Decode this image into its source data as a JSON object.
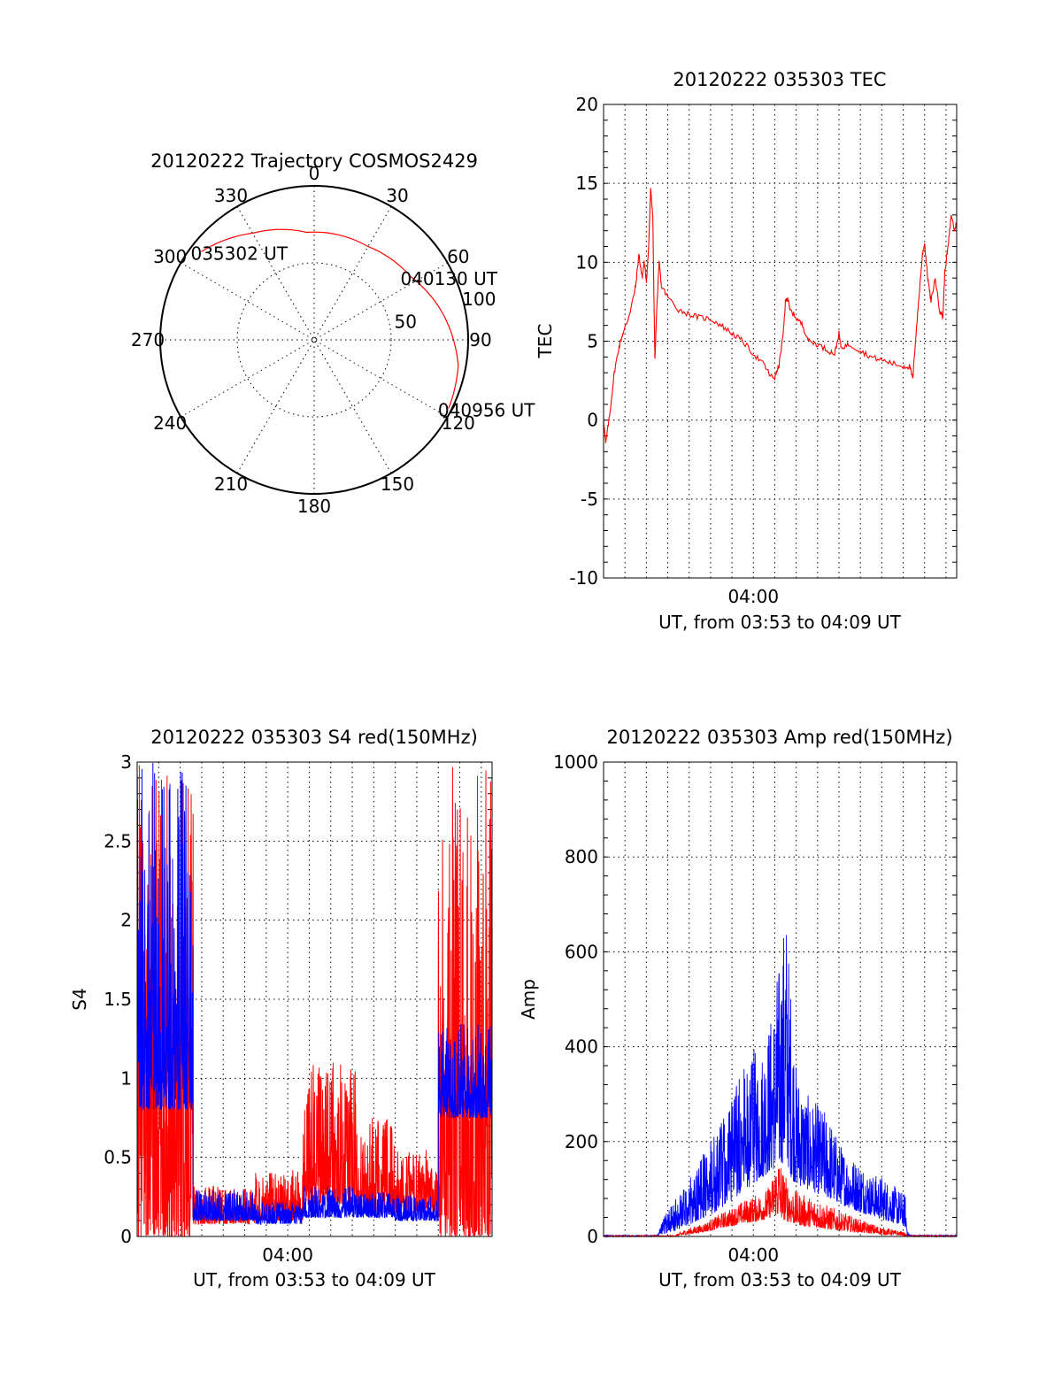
{
  "chart_data": [
    {
      "id": "trajectory",
      "type": "polar",
      "title": "20120222 Trajectory COSMOS2429",
      "azimuth_labels": [
        "0",
        "30",
        "60",
        "90",
        "120",
        "150",
        "180",
        "210",
        "240",
        "270",
        "300",
        "330"
      ],
      "radius_labels": [
        {
          "label": "50",
          "r": 50
        },
        {
          "label": "100",
          "r": 100
        }
      ],
      "r_max": 100,
      "track": [
        {
          "az": 308,
          "r": 93
        },
        {
          "az": 330,
          "r": 80
        },
        {
          "az": 356,
          "r": 70
        },
        {
          "az": 30,
          "r": 70
        },
        {
          "az": 57,
          "r": 75
        },
        {
          "az": 80,
          "r": 86
        },
        {
          "az": 100,
          "r": 95
        },
        {
          "az": 117,
          "r": 98
        }
      ],
      "annotations": [
        {
          "text": "035302 UT",
          "az": 308,
          "r": 93
        },
        {
          "text": "040130 UT",
          "az": 57,
          "r": 75
        },
        {
          "text": "040956 UT",
          "az": 117,
          "r": 98
        }
      ],
      "colors": {
        "track": "#ff0000"
      }
    },
    {
      "id": "tec",
      "type": "line",
      "title": "20120222 035303 TEC",
      "ylabel": "TEC",
      "xlabel": "UT, from 03:53 to 04:09 UT",
      "ylim": [
        -10,
        20
      ],
      "yticks": [
        -10,
        -5,
        0,
        5,
        10,
        15,
        20
      ],
      "xlim_min": [
        233,
        249.5
      ],
      "xtick_labels": [
        {
          "label": "04:00",
          "x": 240
        }
      ],
      "series": [
        {
          "color": "#ff0000",
          "points": [
            [
              233.0,
              0.0
            ],
            [
              233.1,
              -1.5
            ],
            [
              233.3,
              0.5
            ],
            [
              233.5,
              3.0
            ],
            [
              233.7,
              4.5
            ],
            [
              233.9,
              5.5
            ],
            [
              234.1,
              6.2
            ],
            [
              234.3,
              7.2
            ],
            [
              234.5,
              8.5
            ],
            [
              234.65,
              10.5
            ],
            [
              234.8,
              9.0
            ],
            [
              234.9,
              10.0
            ],
            [
              235.0,
              8.8
            ],
            [
              235.1,
              10.8
            ],
            [
              235.2,
              14.6
            ],
            [
              235.3,
              13.0
            ],
            [
              235.35,
              8.0
            ],
            [
              235.4,
              3.8
            ],
            [
              235.5,
              7.5
            ],
            [
              235.6,
              10.0
            ],
            [
              235.7,
              8.5
            ],
            [
              236.0,
              7.8
            ],
            [
              236.5,
              7.0
            ],
            [
              237.0,
              6.7
            ],
            [
              237.5,
              6.5
            ],
            [
              238.0,
              6.4
            ],
            [
              238.5,
              6.0
            ],
            [
              239.0,
              5.5
            ],
            [
              239.5,
              5.0
            ],
            [
              240.0,
              4.2
            ],
            [
              240.5,
              3.5
            ],
            [
              240.8,
              2.8
            ],
            [
              241.0,
              2.7
            ],
            [
              241.2,
              3.5
            ],
            [
              241.4,
              5.5
            ],
            [
              241.5,
              7.5
            ],
            [
              241.6,
              7.8
            ],
            [
              241.7,
              7.0
            ],
            [
              242.0,
              6.5
            ],
            [
              242.3,
              6.0
            ],
            [
              242.6,
              5.0
            ],
            [
              243.0,
              4.8
            ],
            [
              243.5,
              4.4
            ],
            [
              243.8,
              4.2
            ],
            [
              244.0,
              5.5
            ],
            [
              244.1,
              4.6
            ],
            [
              244.5,
              4.8
            ],
            [
              245.0,
              4.4
            ],
            [
              245.5,
              4.0
            ],
            [
              246.0,
              3.8
            ],
            [
              246.5,
              3.6
            ],
            [
              247.0,
              3.4
            ],
            [
              247.3,
              3.4
            ],
            [
              247.45,
              2.6
            ],
            [
              247.6,
              5.5
            ],
            [
              247.75,
              8.0
            ],
            [
              247.9,
              10.5
            ],
            [
              248.0,
              11.2
            ],
            [
              248.15,
              9.0
            ],
            [
              248.3,
              7.5
            ],
            [
              248.5,
              9.0
            ],
            [
              248.7,
              7.0
            ],
            [
              248.85,
              6.5
            ],
            [
              248.95,
              9.5
            ],
            [
              249.1,
              11.0
            ],
            [
              249.25,
              13.0
            ],
            [
              249.4,
              12.0
            ],
            [
              249.5,
              12.6
            ]
          ]
        }
      ]
    },
    {
      "id": "s4",
      "type": "line",
      "title": "20120222 035303 S4 red(150MHz)",
      "ylabel": "S4",
      "xlabel": "UT, from 03:53 to 04:09 UT",
      "ylim": [
        0,
        3
      ],
      "yticks": [
        0,
        0.5,
        1,
        1.5,
        2,
        2.5,
        3
      ],
      "yticklabels": [
        "0",
        "0.5",
        "1",
        "1.5",
        "2",
        "2.5",
        "3"
      ],
      "xlim_min": [
        233,
        249.5
      ],
      "xtick_labels": [
        {
          "label": "04:00",
          "x": 240
        }
      ],
      "series": [
        {
          "color": "#ff0000",
          "segments": [
            {
              "x": [
                233.0,
                235.6
              ],
              "low": 0.0,
              "high": 3.0
            },
            {
              "x": [
                235.6,
                238.5
              ],
              "low": 0.08,
              "high": 0.32
            },
            {
              "x": [
                238.5,
                240.7
              ],
              "low": 0.1,
              "high": 0.42
            },
            {
              "x": [
                240.7,
                243.2
              ],
              "low": 0.2,
              "high": 1.1
            },
            {
              "x": [
                243.2,
                245.0
              ],
              "low": 0.15,
              "high": 0.75
            },
            {
              "x": [
                245.0,
                247.0
              ],
              "low": 0.15,
              "high": 0.55
            },
            {
              "x": [
                247.0,
                249.5
              ],
              "low": 0.0,
              "high": 3.0
            }
          ]
        },
        {
          "color": "#0000ff",
          "segments": [
            {
              "x": [
                233.0,
                235.6
              ],
              "low": 0.8,
              "high": 3.0
            },
            {
              "x": [
                235.6,
                238.5
              ],
              "low": 0.1,
              "high": 0.3
            },
            {
              "x": [
                238.5,
                240.7
              ],
              "low": 0.08,
              "high": 0.22
            },
            {
              "x": [
                240.7,
                243.2
              ],
              "low": 0.12,
              "high": 0.32
            },
            {
              "x": [
                243.2,
                245.0
              ],
              "low": 0.12,
              "high": 0.28
            },
            {
              "x": [
                245.0,
                247.0
              ],
              "low": 0.1,
              "high": 0.26
            },
            {
              "x": [
                247.0,
                249.5
              ],
              "low": 0.75,
              "high": 1.35
            }
          ]
        }
      ]
    },
    {
      "id": "amp",
      "type": "line",
      "title": "20120222 035303 Amp red(150MHz)",
      "ylabel": "Amp",
      "xlabel": "UT, from 03:53 to 04:09 UT",
      "ylim": [
        0,
        1000
      ],
      "yticks": [
        0,
        200,
        400,
        600,
        800,
        1000
      ],
      "xlim_min": [
        233,
        249.5
      ],
      "xtick_labels": [
        {
          "label": "04:00",
          "x": 240
        }
      ],
      "series": [
        {
          "color": "#0000ff",
          "envelope": [
            [
              233.0,
              0,
              3
            ],
            [
              235.5,
              0,
              3
            ],
            [
              235.8,
              5,
              40
            ],
            [
              236.5,
              15,
              90
            ],
            [
              237.0,
              25,
              120
            ],
            [
              237.5,
              35,
              170
            ],
            [
              238.0,
              45,
              200
            ],
            [
              238.5,
              60,
              240
            ],
            [
              239.0,
              75,
              300
            ],
            [
              239.5,
              95,
              360
            ],
            [
              240.0,
              110,
              400
            ],
            [
              240.3,
              120,
              380
            ],
            [
              240.6,
              130,
              440
            ],
            [
              240.9,
              140,
              480
            ],
            [
              241.1,
              145,
              560
            ],
            [
              241.3,
              150,
              600
            ],
            [
              241.45,
              160,
              680
            ],
            [
              241.5,
              180,
              740
            ],
            [
              241.6,
              150,
              640
            ],
            [
              241.8,
              120,
              500
            ],
            [
              242.0,
              110,
              360
            ],
            [
              242.5,
              100,
              300
            ],
            [
              243.0,
              90,
              280
            ],
            [
              243.5,
              80,
              260
            ],
            [
              244.0,
              70,
              200
            ],
            [
              244.5,
              60,
              170
            ],
            [
              245.0,
              50,
              160
            ],
            [
              245.5,
              45,
              130
            ],
            [
              246.0,
              35,
              130
            ],
            [
              246.5,
              30,
              110
            ],
            [
              247.1,
              20,
              90
            ],
            [
              247.2,
              0,
              10
            ],
            [
              247.4,
              0,
              3
            ],
            [
              249.5,
              0,
              3
            ]
          ]
        },
        {
          "color": "#ff0000",
          "envelope": [
            [
              233.0,
              0,
              2
            ],
            [
              236.3,
              0,
              2
            ],
            [
              236.8,
              3,
              15
            ],
            [
              237.5,
              8,
              25
            ],
            [
              238.0,
              12,
              35
            ],
            [
              238.5,
              18,
              50
            ],
            [
              239.0,
              22,
              60
            ],
            [
              239.5,
              28,
              75
            ],
            [
              240.0,
              30,
              85
            ],
            [
              240.5,
              35,
              95
            ],
            [
              240.8,
              40,
              110
            ],
            [
              241.0,
              45,
              150
            ],
            [
              241.2,
              40,
              180
            ],
            [
              241.4,
              35,
              140
            ],
            [
              241.7,
              30,
              110
            ],
            [
              242.0,
              25,
              95
            ],
            [
              242.5,
              20,
              85
            ],
            [
              243.0,
              18,
              80
            ],
            [
              243.5,
              15,
              65
            ],
            [
              244.0,
              12,
              55
            ],
            [
              244.5,
              10,
              45
            ],
            [
              245.0,
              8,
              35
            ],
            [
              245.5,
              6,
              28
            ],
            [
              246.0,
              4,
              20
            ],
            [
              246.5,
              3,
              15
            ],
            [
              247.0,
              2,
              10
            ],
            [
              247.2,
              0,
              2
            ],
            [
              249.5,
              0,
              2
            ]
          ]
        }
      ]
    }
  ]
}
